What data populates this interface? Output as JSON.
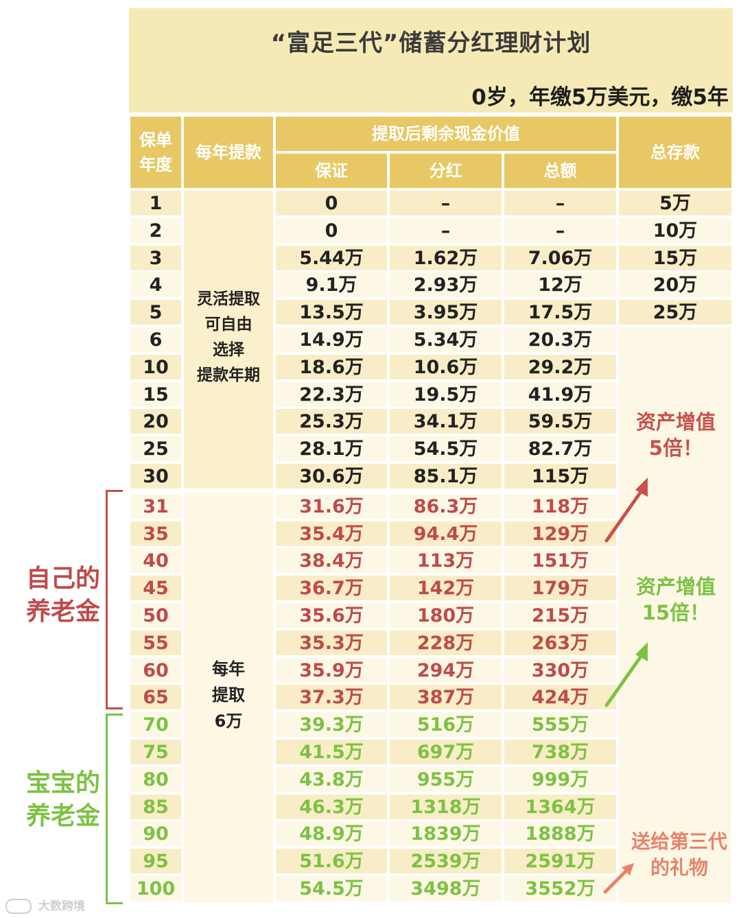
{
  "title": "“富足三代”储蓄分红理财计划",
  "subtitle": "0岁，年缴5万美元，缴5年",
  "headers": {
    "policy_year": "保单年度",
    "annual_withdrawal": "每年提款",
    "remaining_cash_value": "提取后剩余现金价值",
    "guaranteed": "保证",
    "dividend": "分红",
    "total": "总额",
    "total_deposit": "总存款"
  },
  "withdrawal_notes": {
    "flexible": [
      "灵活提取",
      "可自由",
      "选择",
      "提款年期"
    ],
    "yearly": [
      "每年",
      "提取",
      "6万"
    ]
  },
  "rows": [
    {
      "year": "1",
      "guaranteed": "0",
      "dividend": "–",
      "total": "–",
      "deposit": "5万",
      "group": "normal"
    },
    {
      "year": "2",
      "guaranteed": "0",
      "dividend": "–",
      "total": "–",
      "deposit": "10万",
      "group": "normal"
    },
    {
      "year": "3",
      "guaranteed": "5.44万",
      "dividend": "1.62万",
      "total": "7.06万",
      "deposit": "15万",
      "group": "normal"
    },
    {
      "year": "4",
      "guaranteed": "9.1万",
      "dividend": "2.93万",
      "total": "12万",
      "deposit": "20万",
      "group": "normal"
    },
    {
      "year": "5",
      "guaranteed": "13.5万",
      "dividend": "3.95万",
      "total": "17.5万",
      "deposit": "25万",
      "group": "normal"
    },
    {
      "year": "6",
      "guaranteed": "14.9万",
      "dividend": "5.34万",
      "total": "20.3万",
      "deposit": "",
      "group": "normal"
    },
    {
      "year": "10",
      "guaranteed": "18.6万",
      "dividend": "10.6万",
      "total": "29.2万",
      "deposit": "",
      "group": "normal"
    },
    {
      "year": "15",
      "guaranteed": "22.3万",
      "dividend": "19.5万",
      "total": "41.9万",
      "deposit": "",
      "group": "normal"
    },
    {
      "year": "20",
      "guaranteed": "25.3万",
      "dividend": "34.1万",
      "total": "59.5万",
      "deposit": "",
      "group": "normal"
    },
    {
      "year": "25",
      "guaranteed": "28.1万",
      "dividend": "54.5万",
      "total": "82.7万",
      "deposit": "",
      "group": "normal"
    },
    {
      "year": "30",
      "guaranteed": "30.6万",
      "dividend": "85.1万",
      "total": "115万",
      "deposit": "",
      "group": "normal"
    },
    {
      "year": "31",
      "guaranteed": "31.6万",
      "dividend": "86.3万",
      "total": "118万",
      "deposit": "",
      "group": "red"
    },
    {
      "year": "35",
      "guaranteed": "35.4万",
      "dividend": "94.4万",
      "total": "129万",
      "deposit": "",
      "group": "red"
    },
    {
      "year": "40",
      "guaranteed": "38.4万",
      "dividend": "113万",
      "total": "151万",
      "deposit": "",
      "group": "red"
    },
    {
      "year": "45",
      "guaranteed": "36.7万",
      "dividend": "142万",
      "total": "179万",
      "deposit": "",
      "group": "red"
    },
    {
      "year": "50",
      "guaranteed": "35.6万",
      "dividend": "180万",
      "total": "215万",
      "deposit": "",
      "group": "red"
    },
    {
      "year": "55",
      "guaranteed": "35.3万",
      "dividend": "228万",
      "total": "263万",
      "deposit": "",
      "group": "red"
    },
    {
      "year": "60",
      "guaranteed": "35.9万",
      "dividend": "294万",
      "total": "330万",
      "deposit": "",
      "group": "red"
    },
    {
      "year": "65",
      "guaranteed": "37.3万",
      "dividend": "387万",
      "total": "424万",
      "deposit": "",
      "group": "red"
    },
    {
      "year": "70",
      "guaranteed": "39.3万",
      "dividend": "516万",
      "total": "555万",
      "deposit": "",
      "group": "green"
    },
    {
      "year": "75",
      "guaranteed": "41.5万",
      "dividend": "697万",
      "total": "738万",
      "deposit": "",
      "group": "green"
    },
    {
      "year": "80",
      "guaranteed": "43.8万",
      "dividend": "955万",
      "total": "999万",
      "deposit": "",
      "group": "green"
    },
    {
      "year": "85",
      "guaranteed": "46.3万",
      "dividend": "1318万",
      "total": "1364万",
      "deposit": "",
      "group": "green"
    },
    {
      "year": "90",
      "guaranteed": "48.9万",
      "dividend": "1839万",
      "total": "1888万",
      "deposit": "",
      "group": "green"
    },
    {
      "year": "95",
      "guaranteed": "51.6万",
      "dividend": "2539万",
      "total": "2591万",
      "deposit": "",
      "group": "green"
    },
    {
      "year": "100",
      "guaranteed": "54.5万",
      "dividend": "3498万",
      "total": "3552万",
      "deposit": "",
      "group": "green"
    }
  ],
  "annotations": {
    "growth_5x": [
      "资产增值",
      "5倍！"
    ],
    "growth_15x": [
      "资产增值",
      "15倍！"
    ],
    "gift": [
      "送给第三代",
      "的礼物"
    ],
    "own_pension": [
      "自己的",
      "养老金"
    ],
    "baby_pension": [
      "宝宝的",
      "养老金"
    ]
  },
  "watermark": "大数跨境",
  "colors": {
    "header_bg": "#e7c864",
    "title_bg": "#f5eab6",
    "red": "#bf4a4a",
    "green": "#7cc242",
    "salmon": "#e8826a"
  }
}
